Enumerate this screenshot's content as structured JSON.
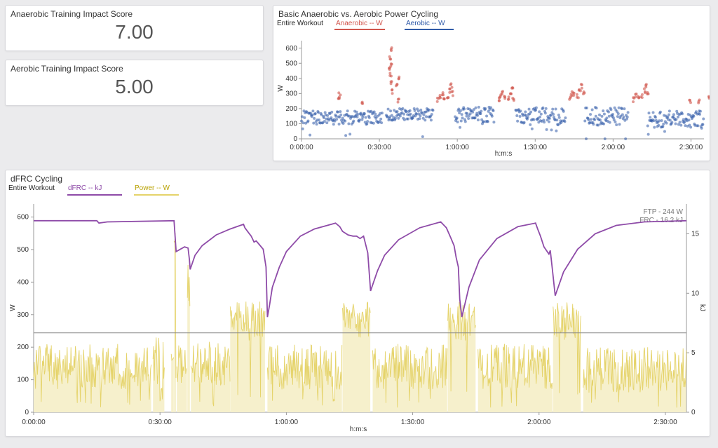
{
  "cards": {
    "anaerobic_score": {
      "title": "Anaerobic Training Impact Score",
      "value": "7.00"
    },
    "aerobic_score": {
      "title": "Aerobic Training Impact Score",
      "value": "5.00"
    }
  },
  "colors": {
    "anaerobic": "#d1564d",
    "aerobic": "#2f5aa8",
    "dfrc": "#8e4ba8",
    "power": "#e5d36a",
    "power_fill": "#f6f0cc",
    "ftp_line": "#888888"
  },
  "chart_data": [
    {
      "type": "scatter",
      "title": "Basic Anaerobic vs. Aerobic Power Cycling",
      "range_label": "Entire Workout",
      "xlabel": "h:m:s",
      "ylabel": "W",
      "x_unit": "seconds",
      "xlim": [
        0,
        9300
      ],
      "ylim": [
        0,
        650
      ],
      "yticks": [
        0,
        100,
        200,
        300,
        400,
        500,
        600
      ],
      "xticks": [
        {
          "v": 0,
          "label": "0:00:00"
        },
        {
          "v": 1800,
          "label": "0:30:00"
        },
        {
          "v": 3600,
          "label": "1:00:00"
        },
        {
          "v": 5400,
          "label": "1:30:00"
        },
        {
          "v": 7200,
          "label": "2:00:00"
        },
        {
          "v": 9000,
          "label": "2:30:00"
        }
      ],
      "series": [
        {
          "name": "Anaerobic  -- W",
          "points": [
            [
              870,
              255
            ],
            [
              880,
              290
            ],
            [
              1400,
              235
            ],
            [
              2040,
              460
            ],
            [
              2060,
              420
            ],
            [
              2050,
              540
            ],
            [
              2080,
              590
            ],
            [
              2070,
              490
            ],
            [
              2100,
              310
            ],
            [
              2080,
              380
            ],
            [
              2200,
              350
            ],
            [
              2250,
              400
            ],
            [
              2240,
              250
            ],
            [
              3150,
              260
            ],
            [
              3200,
              280
            ],
            [
              3260,
              300
            ],
            [
              3300,
              270
            ],
            [
              3380,
              265
            ],
            [
              3420,
              320
            ],
            [
              3460,
              350
            ],
            [
              3480,
              300
            ],
            [
              4550,
              260
            ],
            [
              4600,
              290
            ],
            [
              4650,
              300
            ],
            [
              4700,
              280
            ],
            [
              4780,
              270
            ],
            [
              4830,
              310
            ],
            [
              4870,
              340
            ],
            [
              4900,
              260
            ],
            [
              6200,
              270
            ],
            [
              6250,
              300
            ],
            [
              6300,
              290
            ],
            [
              6380,
              280
            ],
            [
              6430,
              320
            ],
            [
              6480,
              350
            ],
            [
              6520,
              300
            ],
            [
              7680,
              260
            ],
            [
              7730,
              290
            ],
            [
              7780,
              270
            ],
            [
              7860,
              280
            ],
            [
              7920,
              320
            ],
            [
              7960,
              350
            ],
            [
              8000,
              300
            ],
            [
              8980,
              250
            ],
            [
              9180,
              250
            ],
            [
              9430,
              270
            ]
          ]
        },
        {
          "name": "Aerobic  -- W",
          "segments": [
            {
              "start": 0,
              "end": 1870,
              "base": 140,
              "amp": 45
            },
            {
              "start": 1960,
              "end": 3050,
              "base": 160,
              "amp": 40
            },
            {
              "start": 3550,
              "end": 4450,
              "base": 155,
              "amp": 55
            },
            {
              "start": 4950,
              "end": 6100,
              "base": 150,
              "amp": 60
            },
            {
              "start": 6550,
              "end": 7550,
              "base": 150,
              "amp": 60
            },
            {
              "start": 8000,
              "end": 9300,
              "base": 130,
              "amp": 55
            }
          ]
        }
      ]
    },
    {
      "type": "line",
      "title": "dFRC Cycling",
      "range_label": "Entire Workout",
      "xlabel": "h:m:s",
      "ylabel": "W",
      "y2label": "kJ",
      "x_unit": "seconds",
      "xlim": [
        0,
        9300
      ],
      "ylim": [
        0,
        640
      ],
      "y2lim": [
        0,
        17.5
      ],
      "yticks": [
        0,
        100,
        200,
        300,
        400,
        500,
        600
      ],
      "y2ticks": [
        0,
        5,
        10,
        15
      ],
      "xticks": [
        {
          "v": 0,
          "label": "0:00:00"
        },
        {
          "v": 1800,
          "label": "0:30:00"
        },
        {
          "v": 3600,
          "label": "1:00:00"
        },
        {
          "v": 5400,
          "label": "1:30:00"
        },
        {
          "v": 7200,
          "label": "2:00:00"
        },
        {
          "v": 9000,
          "label": "2:30:00"
        }
      ],
      "annotations": {
        "ftp": "FTP - 244 W",
        "frc": "FRC - 16.2 kJ"
      },
      "ftp_value": 244,
      "series": [
        {
          "name": "dFRC  -- kJ",
          "axis": "right",
          "points": [
            [
              0,
              16.1
            ],
            [
              900,
              16.1
            ],
            [
              930,
              15.9
            ],
            [
              1050,
              16.0
            ],
            [
              2000,
              16.1
            ],
            [
              2030,
              13.5
            ],
            [
              2150,
              13.9
            ],
            [
              2200,
              13.8
            ],
            [
              2220,
              12.8
            ],
            [
              2230,
              12.0
            ],
            [
              2300,
              13.2
            ],
            [
              2400,
              14.0
            ],
            [
              2600,
              14.9
            ],
            [
              2800,
              15.4
            ],
            [
              2990,
              15.8
            ],
            [
              3010,
              15.5
            ],
            [
              3060,
              15.1
            ],
            [
              3100,
              14.8
            ],
            [
              3140,
              14.3
            ],
            [
              3170,
              14.4
            ],
            [
              3200,
              14.2
            ],
            [
              3270,
              13.7
            ],
            [
              3310,
              12.2
            ],
            [
              3330,
              8.0
            ],
            [
              3360,
              9.0
            ],
            [
              3400,
              10.5
            ],
            [
              3500,
              12.2
            ],
            [
              3600,
              13.5
            ],
            [
              3800,
              14.8
            ],
            [
              4000,
              15.4
            ],
            [
              4300,
              15.9
            ],
            [
              4360,
              15.6
            ],
            [
              4400,
              15.2
            ],
            [
              4480,
              14.9
            ],
            [
              4550,
              14.8
            ],
            [
              4600,
              14.8
            ],
            [
              4650,
              14.6
            ],
            [
              4700,
              14.8
            ],
            [
              4760,
              13.4
            ],
            [
              4800,
              10.2
            ],
            [
              4900,
              11.9
            ],
            [
              5000,
              13.2
            ],
            [
              5200,
              14.5
            ],
            [
              5500,
              15.5
            ],
            [
              5800,
              16.0
            ],
            [
              5880,
              15.5
            ],
            [
              5940,
              14.7
            ],
            [
              5990,
              14.0
            ],
            [
              6020,
              13.0
            ],
            [
              6050,
              12.2
            ],
            [
              6070,
              9.5
            ],
            [
              6100,
              8.0
            ],
            [
              6200,
              10.5
            ],
            [
              6350,
              12.8
            ],
            [
              6600,
              14.6
            ],
            [
              6900,
              15.6
            ],
            [
              7150,
              15.9
            ],
            [
              7180,
              15.4
            ],
            [
              7220,
              14.8
            ],
            [
              7270,
              13.9
            ],
            [
              7340,
              13.3
            ],
            [
              7360,
              13.6
            ],
            [
              7390,
              12.0
            ],
            [
              7430,
              9.8
            ],
            [
              7550,
              11.8
            ],
            [
              7750,
              13.7
            ],
            [
              8000,
              15.0
            ],
            [
              8300,
              15.7
            ],
            [
              8700,
              16.0
            ],
            [
              9300,
              16.1
            ]
          ]
        },
        {
          "name": "Power  -- W",
          "axis": "left",
          "segments": [
            {
              "start": 0,
              "end": 1680,
              "base": 140,
              "amp": 70
            },
            {
              "start": 1700,
              "end": 1870,
              "base": 150,
              "amp": 80
            },
            {
              "start": 1960,
              "end": 2000,
              "base": 140,
              "amp": 60
            },
            {
              "start": 2000,
              "end": 2030,
              "base": 540,
              "amp": 40
            },
            {
              "start": 2040,
              "end": 2190,
              "base": 150,
              "amp": 60
            },
            {
              "start": 2190,
              "end": 2230,
              "base": 430,
              "amp": 150
            },
            {
              "start": 2240,
              "end": 2800,
              "base": 150,
              "amp": 70
            },
            {
              "start": 2800,
              "end": 3300,
              "base": 280,
              "amp": 60
            },
            {
              "start": 3330,
              "end": 4400,
              "base": 140,
              "amp": 70
            },
            {
              "start": 4400,
              "end": 4800,
              "base": 280,
              "amp": 60
            },
            {
              "start": 4830,
              "end": 5900,
              "base": 140,
              "amp": 70
            },
            {
              "start": 5900,
              "end": 6300,
              "base": 280,
              "amp": 60
            },
            {
              "start": 6330,
              "end": 7400,
              "base": 140,
              "amp": 70
            },
            {
              "start": 7400,
              "end": 7800,
              "base": 280,
              "amp": 60
            },
            {
              "start": 7830,
              "end": 9300,
              "base": 130,
              "amp": 70
            }
          ]
        }
      ]
    }
  ]
}
